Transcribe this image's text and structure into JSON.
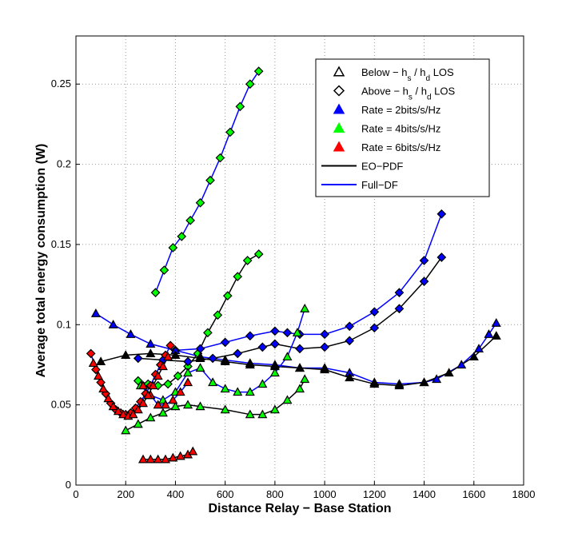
{
  "chart_data": {
    "type": "line",
    "x_label": "Distance Relay − Base Station",
    "y_label": "Average total energy consumption (W)",
    "xlim": [
      0,
      1800
    ],
    "xticks": [
      0,
      200,
      400,
      600,
      800,
      1000,
      1200,
      1400,
      1600,
      1800
    ],
    "ylim": [
      0,
      0.28
    ],
    "yticks": [
      0,
      0.05,
      0.1,
      0.15,
      0.2,
      0.25
    ],
    "grid": true,
    "legend": [
      {
        "parts": [
          {
            "text": "Below − h"
          },
          {
            "text": "s",
            "sub": true
          },
          {
            "text": " / h"
          },
          {
            "text": "d",
            "sub": true
          },
          {
            "text": " LOS"
          }
        ],
        "marker": "triangle",
        "fill": "#ffffff"
      },
      {
        "parts": [
          {
            "text": "Above − h"
          },
          {
            "text": "s",
            "sub": true
          },
          {
            "text": " / h"
          },
          {
            "text": "d",
            "sub": true
          },
          {
            "text": " LOS"
          }
        ],
        "marker": "diamond",
        "fill": "#ffffff"
      },
      {
        "parts": [
          {
            "text": "Rate = 2bits/s/Hz"
          }
        ],
        "marker": "triangle",
        "fill": "#0000ff"
      },
      {
        "parts": [
          {
            "text": "Rate = 4bits/s/Hz"
          }
        ],
        "marker": "triangle",
        "fill": "#00ff00"
      },
      {
        "parts": [
          {
            "text": "Rate = 6bits/s/Hz"
          }
        ],
        "marker": "triangle",
        "fill": "#ff0000"
      },
      {
        "parts": [
          {
            "text": "EO−PDF"
          }
        ],
        "line": "#000000"
      },
      {
        "parts": [
          {
            "text": "Full−DF"
          }
        ],
        "line": "#0000ff"
      }
    ],
    "series": [
      {
        "line": "#0000ff",
        "marker": "diamond",
        "fill": "#00ff00",
        "x": [
          320,
          355,
          390,
          425,
          460,
          500,
          540,
          580,
          620,
          660,
          700,
          735
        ],
        "values": [
          0.12,
          0.134,
          0.148,
          0.155,
          0.165,
          0.176,
          0.19,
          0.204,
          0.22,
          0.236,
          0.25,
          0.258
        ]
      },
      {
        "line": "#000000",
        "marker": "diamond",
        "fill": "#00ff00",
        "x": [
          250,
          290,
          330,
          370,
          410,
          450,
          490,
          530,
          570,
          610,
          650,
          690,
          735
        ],
        "values": [
          0.065,
          0.063,
          0.062,
          0.063,
          0.068,
          0.074,
          0.082,
          0.095,
          0.106,
          0.118,
          0.13,
          0.14,
          0.144
        ]
      },
      {
        "line": "#0000ff",
        "marker": "diamond",
        "fill": "#0000ff",
        "x": [
          400,
          500,
          600,
          700,
          800,
          850,
          900,
          1000,
          1100,
          1200,
          1300,
          1400,
          1470
        ],
        "values": [
          0.084,
          0.085,
          0.089,
          0.093,
          0.096,
          0.095,
          0.094,
          0.094,
          0.099,
          0.108,
          0.12,
          0.14,
          0.169
        ]
      },
      {
        "line": "#000000",
        "marker": "diamond",
        "fill": "#0000ff",
        "x": [
          250,
          350,
          450,
          550,
          650,
          750,
          800,
          900,
          1000,
          1100,
          1200,
          1300,
          1400,
          1470
        ],
        "values": [
          0.079,
          0.078,
          0.077,
          0.079,
          0.082,
          0.086,
          0.088,
          0.085,
          0.086,
          0.09,
          0.098,
          0.11,
          0.127,
          0.142
        ]
      },
      {
        "line": "#0000ff",
        "marker": "triangle",
        "fill": "#0000ff",
        "x": [
          80,
          150,
          220,
          300,
          400,
          500,
          600,
          700,
          800,
          900,
          1000,
          1100,
          1200,
          1300,
          1400,
          1450,
          1550,
          1620,
          1660,
          1690
        ],
        "values": [
          0.107,
          0.1,
          0.094,
          0.088,
          0.084,
          0.08,
          0.078,
          0.076,
          0.075,
          0.073,
          0.073,
          0.07,
          0.064,
          0.063,
          0.064,
          0.066,
          0.075,
          0.085,
          0.094,
          0.101
        ]
      },
      {
        "line": "#000000",
        "marker": "triangle",
        "fill": "#000000",
        "x": [
          100,
          200,
          300,
          400,
          500,
          600,
          700,
          800,
          900,
          1000,
          1100,
          1200,
          1300,
          1400,
          1500,
          1600,
          1690
        ],
        "values": [
          0.077,
          0.081,
          0.082,
          0.081,
          0.079,
          0.077,
          0.075,
          0.074,
          0.073,
          0.072,
          0.067,
          0.063,
          0.062,
          0.064,
          0.07,
          0.08,
          0.093
        ]
      },
      {
        "line": "#0000ff",
        "marker": "triangle",
        "fill": "#00ff00",
        "x": [
          260,
          300,
          350,
          400,
          450,
          500,
          550,
          600,
          650,
          700,
          750,
          800,
          850,
          890,
          920
        ],
        "values": [
          0.062,
          0.056,
          0.053,
          0.058,
          0.07,
          0.073,
          0.064,
          0.06,
          0.058,
          0.058,
          0.063,
          0.07,
          0.08,
          0.095,
          0.11
        ]
      },
      {
        "line": "#000000",
        "marker": "triangle",
        "fill": "#00ff00",
        "x": [
          200,
          250,
          300,
          350,
          400,
          450,
          500,
          600,
          700,
          750,
          800,
          850,
          900,
          920
        ],
        "values": [
          0.034,
          0.038,
          0.042,
          0.045,
          0.049,
          0.05,
          0.049,
          0.047,
          0.044,
          0.044,
          0.047,
          0.053,
          0.06,
          0.066
        ]
      },
      {
        "line": "#0000ff",
        "marker": "triangle",
        "fill": "#ff0000",
        "x": [
          270,
          300,
          330,
          360,
          390,
          420,
          450
        ],
        "values": [
          0.062,
          0.056,
          0.05,
          0.05,
          0.053,
          0.058,
          0.064
        ]
      },
      {
        "line": "#0000ff",
        "marker": "diamond",
        "fill": "#ff0000",
        "x": [
          60,
          80,
          100,
          120,
          140,
          160,
          180,
          200,
          220,
          240,
          260,
          280,
          300,
          320,
          340,
          360,
          380
        ],
        "values": [
          0.082,
          0.072,
          0.064,
          0.057,
          0.051,
          0.047,
          0.045,
          0.044,
          0.045,
          0.048,
          0.052,
          0.057,
          0.062,
          0.069,
          0.075,
          0.081,
          0.087
        ]
      },
      {
        "line": "#000000",
        "marker": "triangle",
        "fill": "#ff0000",
        "x": [
          70,
          90,
          110,
          130,
          150,
          170,
          190,
          210,
          230,
          250,
          270,
          290,
          310,
          330,
          350,
          370
        ],
        "values": [
          0.076,
          0.068,
          0.06,
          0.054,
          0.049,
          0.046,
          0.044,
          0.043,
          0.044,
          0.047,
          0.051,
          0.056,
          0.062,
          0.068,
          0.074,
          0.08
        ]
      },
      {
        "line": "#000000",
        "marker": "triangle",
        "fill": "#ff0000",
        "x": [
          270,
          300,
          330,
          360,
          390,
          420,
          450,
          470
        ],
        "values": [
          0.016,
          0.016,
          0.016,
          0.016,
          0.017,
          0.018,
          0.019,
          0.021
        ]
      }
    ]
  }
}
